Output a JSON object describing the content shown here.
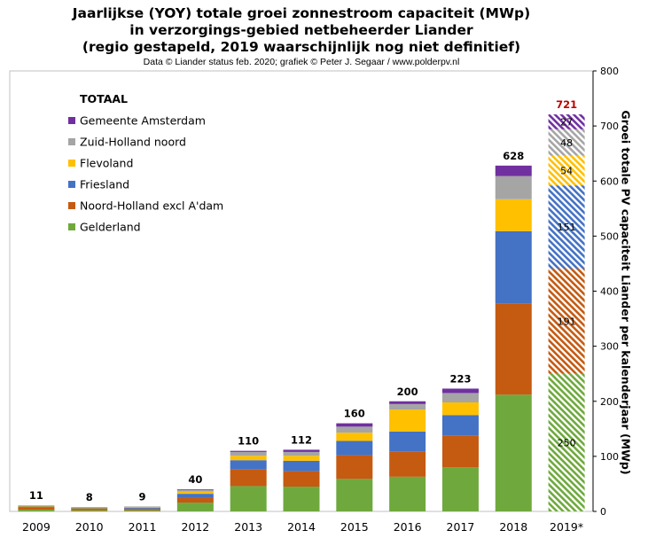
{
  "chart_data": {
    "type": "bar",
    "stacked": true,
    "title_lines": [
      "Jaarlijkse (YOY) totale groei zonnestroom capaciteit (MWp)",
      "in verzorgings-gebied netbeheerder Liander",
      "(regio gestapeld, 2019 waarschijnlijk nog niet definitief)"
    ],
    "subtitle": "Data © Liander status feb. 2020; grafiek © Peter J. Segaar / www.polderpv.nl",
    "ylabel": "Groei totale PV capaciteit Liander per kalenderjaar (MWp)",
    "ylim": [
      0,
      800
    ],
    "yticks": [
      0,
      100,
      200,
      300,
      400,
      500,
      600,
      700,
      800
    ],
    "y_axis_side": "right",
    "legend_title": "TOTAAL",
    "legend_position": "top-left",
    "categories": [
      "2009",
      "2010",
      "2011",
      "2012",
      "2013",
      "2014",
      "2015",
      "2016",
      "2017",
      "2018",
      "2019*"
    ],
    "totals": [
      "11",
      "8",
      "9",
      "40",
      "110",
      "112",
      "160",
      "200",
      "223",
      "628",
      "721"
    ],
    "series": [
      {
        "name": "Gelderland",
        "color": "#6fa93d",
        "values": [
          3,
          2,
          2,
          16,
          46,
          45,
          59,
          63,
          80,
          212,
          250
        ]
      },
      {
        "name": "Noord-Holland excl A'dam",
        "color": "#c55a11",
        "values": [
          4,
          3,
          3,
          9,
          30,
          28,
          43,
          46,
          58,
          165,
          191
        ]
      },
      {
        "name": "Friesland",
        "color": "#4472c4",
        "values": [
          2,
          1,
          2,
          7,
          17,
          19,
          26,
          36,
          37,
          132,
          151
        ]
      },
      {
        "name": "Flevoland",
        "color": "#ffc000",
        "values": [
          1,
          1,
          1,
          4,
          8,
          9,
          15,
          40,
          23,
          58,
          54
        ]
      },
      {
        "name": "Zuid-Holland noord",
        "color": "#a5a5a5",
        "values": [
          1,
          1,
          1,
          3,
          7,
          7,
          11,
          10,
          17,
          42,
          48
        ]
      },
      {
        "name": "Gemeente Amsterdam",
        "color": "#7030a0",
        "values": [
          0,
          0,
          0,
          1,
          2,
          4,
          6,
          5,
          8,
          19,
          27
        ]
      }
    ],
    "value_labels_2019": [
      "250",
      "191",
      "151",
      "54",
      "48",
      "27"
    ],
    "hatched_category": "2019*",
    "total_label_color": "#000000",
    "total_label_color_hatched": "#c00000"
  }
}
